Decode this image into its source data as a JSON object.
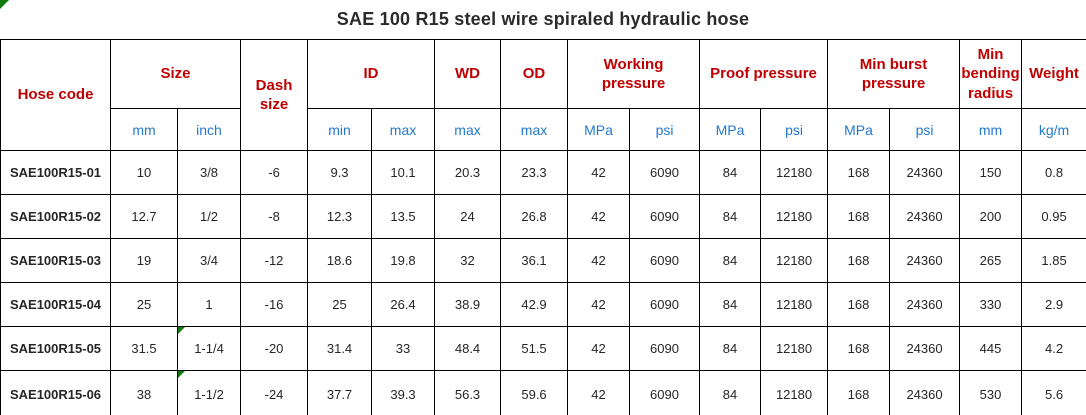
{
  "title": "SAE 100 R15 steel wire spiraled hydraulic hose",
  "colors": {
    "header_red": "#c00000",
    "unit_blue": "#2379cf",
    "flag_green": "#0f7b0f",
    "border": "#000000"
  },
  "header": {
    "groups": {
      "hose_code": "Hose code",
      "size": "Size",
      "dash_size": "Dash size",
      "id": "ID",
      "wd": "WD",
      "od": "OD",
      "working_pressure": "Working pressure",
      "proof_pressure": "Proof pressure",
      "min_burst_pressure": "Min burst pressure",
      "min_bending_radius": "Min bending radius",
      "weight": "Weight"
    },
    "units": [
      "mm",
      "inch",
      "min",
      "max",
      "max",
      "max",
      "MPa",
      "psi",
      "MPa",
      "psi",
      "MPa",
      "psi",
      "mm",
      "kg/m"
    ]
  },
  "table": {
    "rows": [
      {
        "code": "SAE100R15-01",
        "flagged_inch": false,
        "values": [
          "10",
          "3/8",
          "-6",
          "9.3",
          "10.1",
          "20.3",
          "23.3",
          "42",
          "6090",
          "84",
          "12180",
          "168",
          "24360",
          "150",
          "0.8"
        ]
      },
      {
        "code": "SAE100R15-02",
        "flagged_inch": false,
        "values": [
          "12.7",
          "1/2",
          "-8",
          "12.3",
          "13.5",
          "24",
          "26.8",
          "42",
          "6090",
          "84",
          "12180",
          "168",
          "24360",
          "200",
          "0.95"
        ]
      },
      {
        "code": "SAE100R15-03",
        "flagged_inch": false,
        "values": [
          "19",
          "3/4",
          "-12",
          "18.6",
          "19.8",
          "32",
          "36.1",
          "42",
          "6090",
          "84",
          "12180",
          "168",
          "24360",
          "265",
          "1.85"
        ]
      },
      {
        "code": "SAE100R15-04",
        "flagged_inch": false,
        "values": [
          "25",
          "1",
          "-16",
          "25",
          "26.4",
          "38.9",
          "42.9",
          "42",
          "6090",
          "84",
          "12180",
          "168",
          "24360",
          "330",
          "2.9"
        ]
      },
      {
        "code": "SAE100R15-05",
        "flagged_inch": true,
        "values": [
          "31.5",
          "1-1/4",
          "-20",
          "31.4",
          "33",
          "48.4",
          "51.5",
          "42",
          "6090",
          "84",
          "12180",
          "168",
          "24360",
          "445",
          "4.2"
        ]
      },
      {
        "code": "SAE100R15-06",
        "flagged_inch": true,
        "values": [
          "38",
          "1-1/2",
          "-24",
          "37.7",
          "39.3",
          "56.3",
          "59.6",
          "42",
          "6090",
          "84",
          "12180",
          "168",
          "24360",
          "530",
          "5.6"
        ]
      }
    ]
  }
}
